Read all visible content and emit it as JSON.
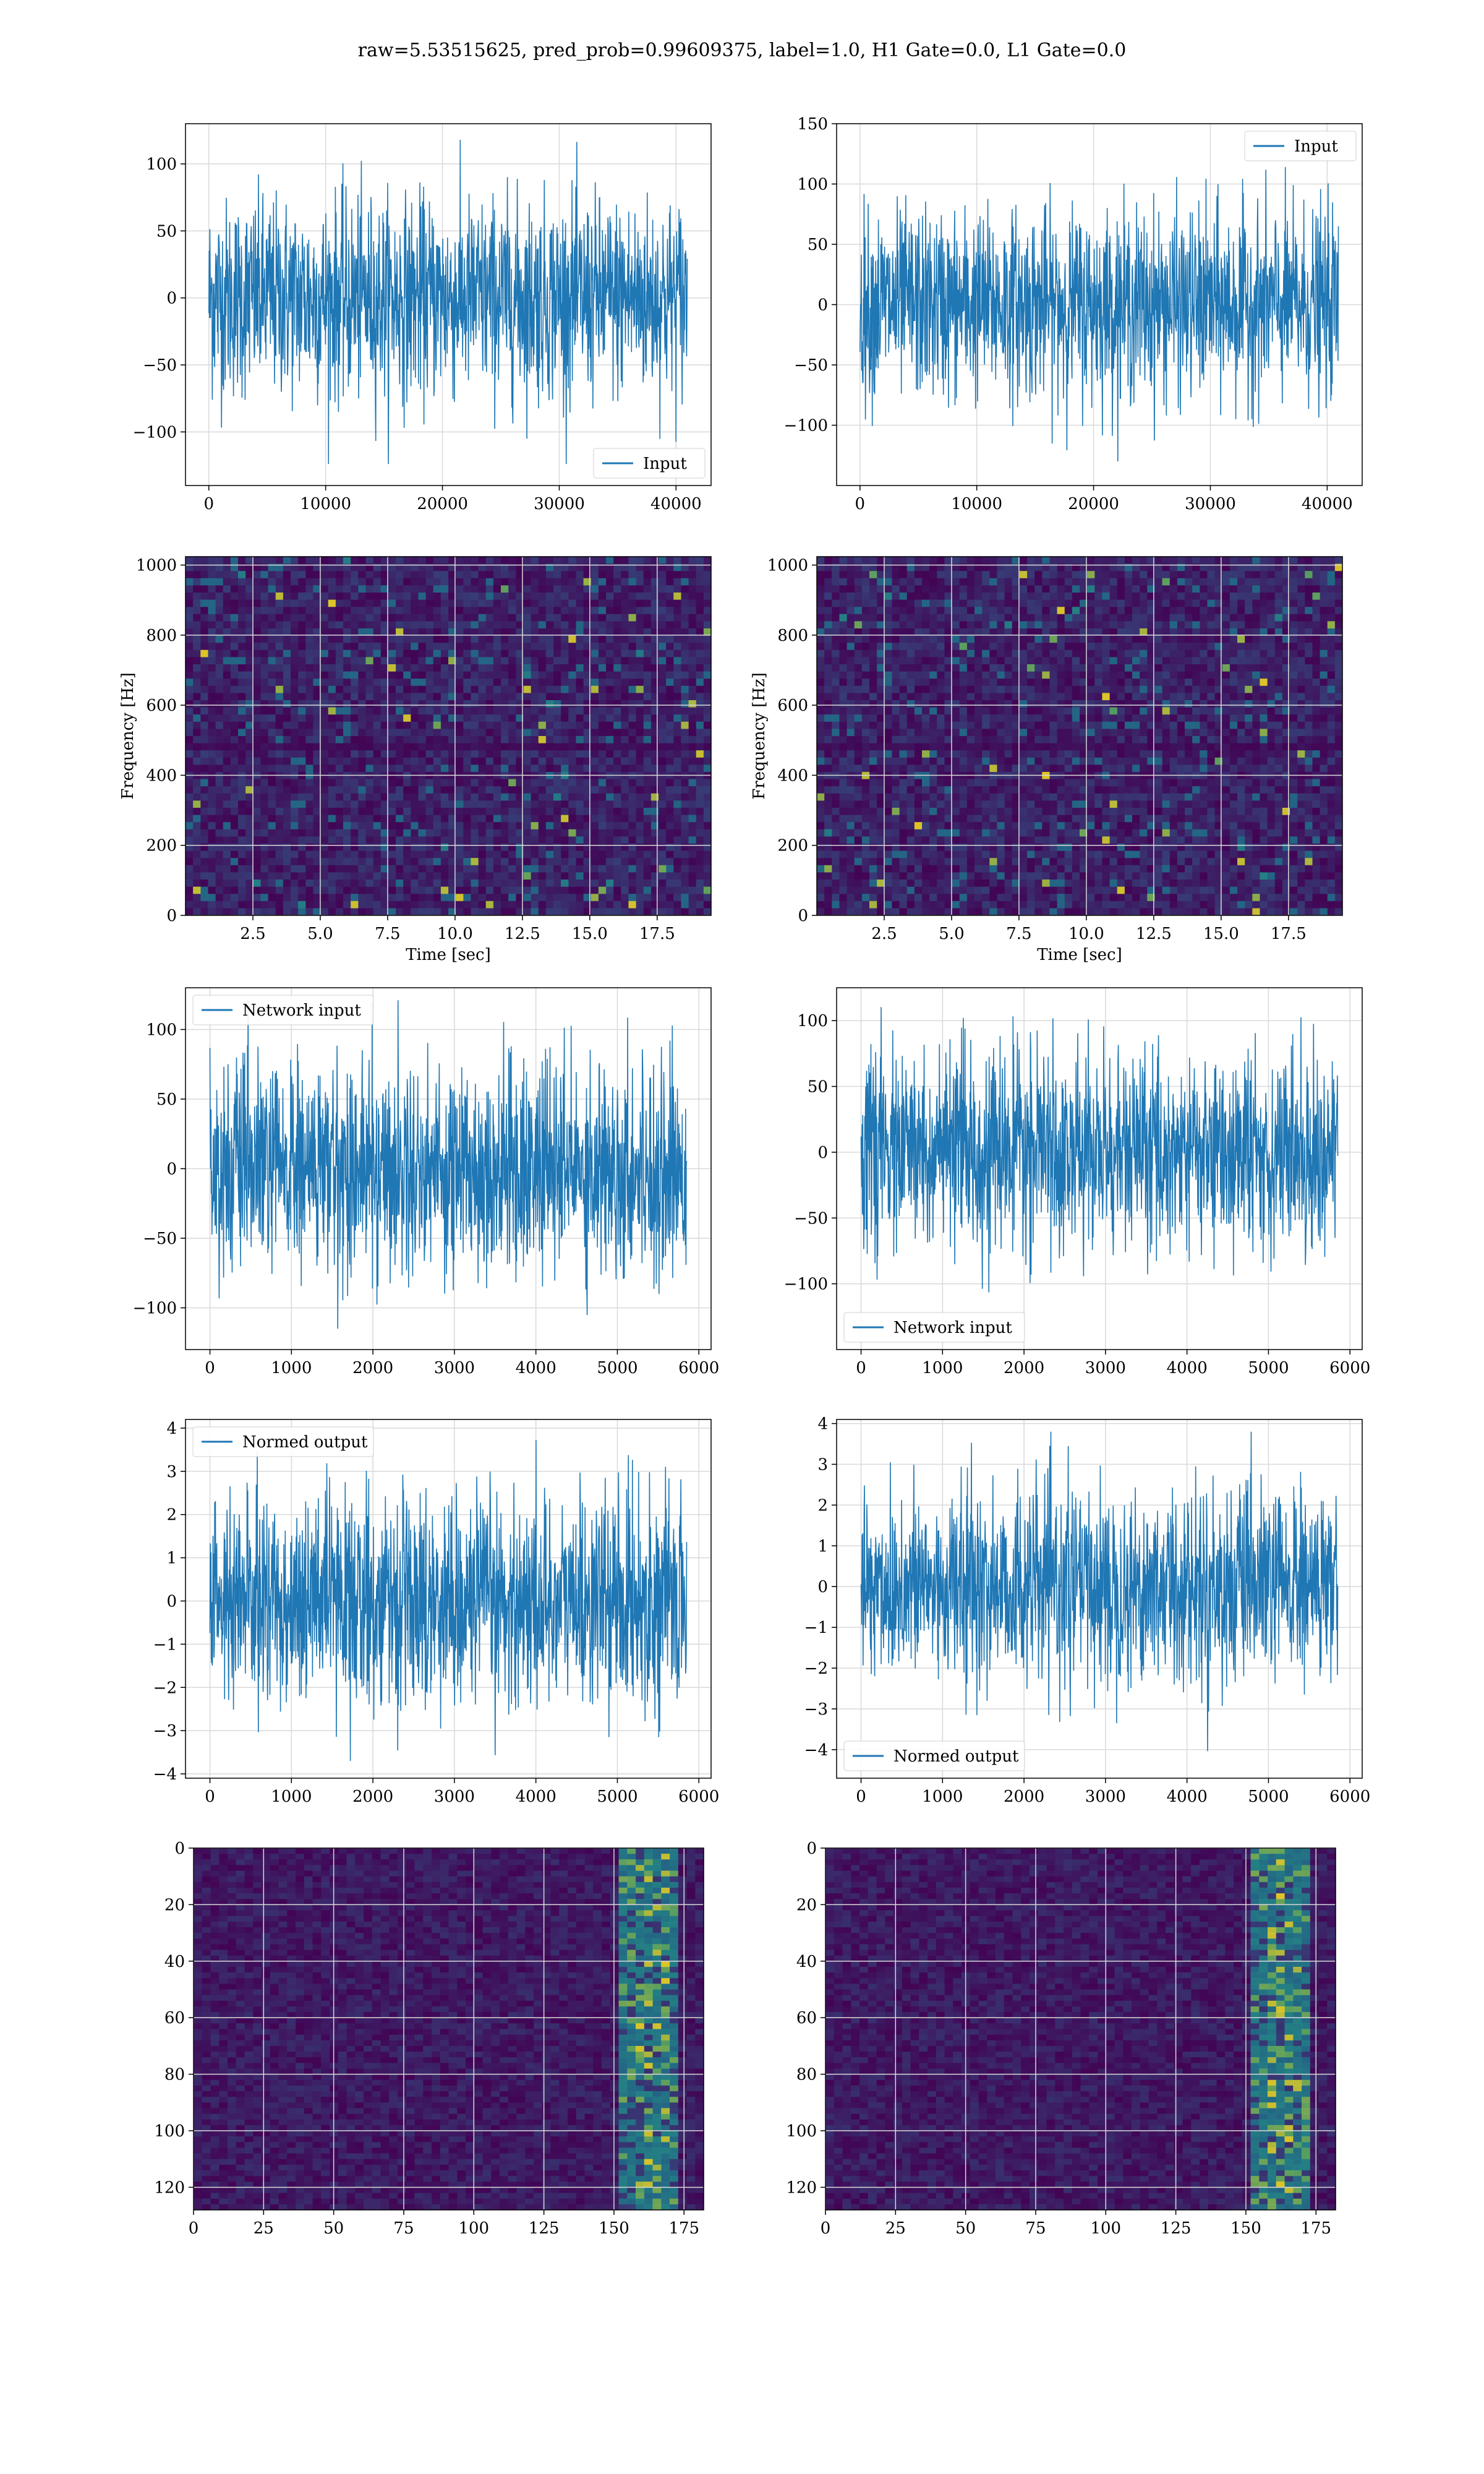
{
  "title": "raw=5.53515625, pred_prob=0.99609375, label=1.0, H1 Gate=0.0, L1 Gate=0.0",
  "colors": {
    "line": "#1f77b4",
    "viridis_dark": "#440154",
    "viridis_bg": "#3b1a5a",
    "grid": "#d9d9d9"
  },
  "chart_data": [
    {
      "id": "input-h1",
      "type": "line",
      "series": [
        {
          "name": "Input",
          "samples": 40960,
          "amplitude_max": 118,
          "amplitude_min": -124
        }
      ],
      "xlim": [
        -2000,
        43000
      ],
      "ylim": [
        -140,
        130
      ],
      "xticks": [
        0,
        10000,
        20000,
        30000,
        40000
      ],
      "xticklabels": [
        "0",
        "10000",
        "20000",
        "30000",
        "40000"
      ],
      "yticks": [
        -100,
        -50,
        0,
        50,
        100
      ],
      "yticklabels": [
        "−100",
        "−50",
        "0",
        "50",
        "100"
      ],
      "legend": "lower-right",
      "grid": true
    },
    {
      "id": "input-l1",
      "type": "line",
      "series": [
        {
          "name": "Input",
          "samples": 40960,
          "amplitude_max": 123,
          "amplitude_min": -130
        }
      ],
      "xlim": [
        -2000,
        43000
      ],
      "ylim": [
        -150,
        150
      ],
      "xticks": [
        0,
        10000,
        20000,
        30000,
        40000
      ],
      "xticklabels": [
        "0",
        "10000",
        "20000",
        "30000",
        "40000"
      ],
      "yticks": [
        -100,
        -50,
        0,
        50,
        100,
        150
      ],
      "yticklabels": [
        "−100",
        "−50",
        "0",
        "50",
        "100",
        "150"
      ],
      "legend": "upper-right",
      "grid": true
    },
    {
      "id": "spectrogram-h1",
      "type": "heatmap",
      "xlabel": "Time [sec]",
      "ylabel": "Frequency [Hz]",
      "xlim": [
        0,
        19.5
      ],
      "ylim": [
        0,
        1024
      ],
      "xticks": [
        2.5,
        5,
        7.5,
        10,
        12.5,
        15,
        17.5
      ],
      "xticklabels": [
        "2.5",
        "5.0",
        "7.5",
        "10.0",
        "12.5",
        "15.0",
        "17.5"
      ],
      "yticks": [
        0,
        200,
        400,
        600,
        800,
        1000
      ],
      "yticklabels": [
        "0",
        "200",
        "400",
        "600",
        "800",
        "1000"
      ],
      "grid": true
    },
    {
      "id": "spectrogram-l1",
      "type": "heatmap",
      "xlabel": "Time [sec]",
      "ylabel": "Frequency [Hz]",
      "xlim": [
        0,
        19.5
      ],
      "ylim": [
        0,
        1024
      ],
      "xticks": [
        2.5,
        5,
        7.5,
        10,
        12.5,
        15,
        17.5
      ],
      "xticklabels": [
        "2.5",
        "5.0",
        "7.5",
        "10.0",
        "12.5",
        "15.0",
        "17.5"
      ],
      "yticks": [
        0,
        200,
        400,
        600,
        800,
        1000
      ],
      "yticklabels": [
        "0",
        "200",
        "400",
        "600",
        "800",
        "1000"
      ],
      "grid": true
    },
    {
      "id": "network-input-h1",
      "type": "line",
      "series": [
        {
          "name": "Network input",
          "samples": 5850,
          "amplitude_max": 121,
          "amplitude_min": -115
        }
      ],
      "xlim": [
        -300,
        6150
      ],
      "ylim": [
        -130,
        130
      ],
      "xticks": [
        0,
        1000,
        2000,
        3000,
        4000,
        5000,
        6000
      ],
      "xticklabels": [
        "0",
        "1000",
        "2000",
        "3000",
        "4000",
        "5000",
        "6000"
      ],
      "yticks": [
        -100,
        -50,
        0,
        50,
        100
      ],
      "yticklabels": [
        "−100",
        "−50",
        "0",
        "50",
        "100"
      ],
      "legend": "upper-left",
      "grid": true
    },
    {
      "id": "network-input-l1",
      "type": "line",
      "series": [
        {
          "name": "Network input",
          "samples": 5850,
          "amplitude_max": 117,
          "amplitude_min": -112
        }
      ],
      "xlim": [
        -300,
        6150
      ],
      "ylim": [
        -150,
        125
      ],
      "xticks": [
        0,
        1000,
        2000,
        3000,
        4000,
        5000,
        6000
      ],
      "xticklabels": [
        "0",
        "1000",
        "2000",
        "3000",
        "4000",
        "5000",
        "6000"
      ],
      "yticks": [
        -100,
        -50,
        0,
        50,
        100
      ],
      "yticklabels": [
        "−100",
        "−50",
        "0",
        "50",
        "100"
      ],
      "legend": "lower-left",
      "grid": true
    },
    {
      "id": "normed-output-h1",
      "type": "line",
      "series": [
        {
          "name": "Normed output",
          "samples": 5850,
          "amplitude_max": 3.8,
          "amplitude_min": -3.7
        }
      ],
      "xlim": [
        -300,
        6150
      ],
      "ylim": [
        -4.1,
        4.2
      ],
      "xticks": [
        0,
        1000,
        2000,
        3000,
        4000,
        5000,
        6000
      ],
      "xticklabels": [
        "0",
        "1000",
        "2000",
        "3000",
        "4000",
        "5000",
        "6000"
      ],
      "yticks": [
        -4,
        -3,
        -2,
        -1,
        0,
        1,
        2,
        3,
        4
      ],
      "yticklabels": [
        "−4",
        "−3",
        "−2",
        "−1",
        "0",
        "1",
        "2",
        "3",
        "4"
      ],
      "legend": "upper-left",
      "grid": true
    },
    {
      "id": "normed-output-l1",
      "type": "line",
      "series": [
        {
          "name": "Normed output",
          "samples": 5850,
          "amplitude_max": 3.8,
          "amplitude_min": -4.3
        }
      ],
      "xlim": [
        -300,
        6150
      ],
      "ylim": [
        -4.7,
        4.1
      ],
      "xticks": [
        0,
        1000,
        2000,
        3000,
        4000,
        5000,
        6000
      ],
      "xticklabels": [
        "0",
        "1000",
        "2000",
        "3000",
        "4000",
        "5000",
        "6000"
      ],
      "yticks": [
        -4,
        -3,
        -2,
        -1,
        0,
        1,
        2,
        3,
        4
      ],
      "yticklabels": [
        "−4",
        "−3",
        "−2",
        "−1",
        "0",
        "1",
        "2",
        "3",
        "4"
      ],
      "legend": "lower-left",
      "grid": true
    },
    {
      "id": "feature-map-h1",
      "type": "heatmap",
      "xlim": [
        0,
        182
      ],
      "ylim": [
        128,
        0
      ],
      "xticks": [
        0,
        25,
        50,
        75,
        100,
        125,
        150,
        175
      ],
      "xticklabels": [
        "0",
        "25",
        "50",
        "75",
        "100",
        "125",
        "150",
        "175"
      ],
      "yticks": [
        0,
        20,
        40,
        60,
        80,
        100,
        120
      ],
      "yticklabels": [
        "0",
        "20",
        "40",
        "60",
        "80",
        "100",
        "120"
      ],
      "grid": true
    },
    {
      "id": "feature-map-l1",
      "type": "heatmap",
      "xlim": [
        0,
        182
      ],
      "ylim": [
        128,
        0
      ],
      "xticks": [
        0,
        25,
        50,
        75,
        100,
        125,
        150,
        175
      ],
      "xticklabels": [
        "0",
        "25",
        "50",
        "75",
        "100",
        "125",
        "150",
        "175"
      ],
      "yticks": [
        0,
        20,
        40,
        60,
        80,
        100,
        120
      ],
      "yticklabels": [
        "0",
        "20",
        "40",
        "60",
        "80",
        "100",
        "120"
      ],
      "grid": true
    }
  ]
}
